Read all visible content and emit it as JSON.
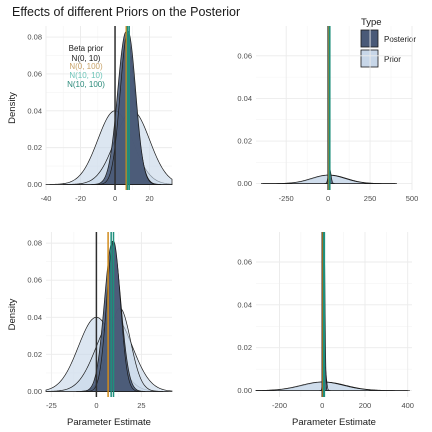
{
  "figure_title": "Effects of different Priors on the Posterior",
  "legend": {
    "title": "Type",
    "items": [
      {
        "label": "Posterior",
        "color": "#4a5a78"
      },
      {
        "label": "Prior",
        "color": "#c7d6e8"
      }
    ]
  },
  "annotations": [
    {
      "text": "Beta prior",
      "color": "#1a1a1a"
    },
    {
      "text": "N(0, 10)",
      "color": "#1a1a1a"
    },
    {
      "text": "N(0, 100)",
      "color": "#c9a46a"
    },
    {
      "text": "N(10, 10)",
      "color": "#6cc4b8"
    },
    {
      "text": "N(10, 100)",
      "color": "#2a8a7a"
    }
  ],
  "colors": {
    "posterior_fill": "#4a5a78",
    "prior_fill": "#c7d6e8",
    "posterior_line_dark": "#2e2e2e",
    "posterior_line_orange": "#d08a1c",
    "posterior_line_teal": "#1e8f7c"
  },
  "chart_data": [
    {
      "type": "area",
      "panel": "top-left",
      "ylabel": "Density",
      "xlabel": "",
      "xlim": [
        -40,
        33
      ],
      "ylim": [
        -0.003,
        0.086
      ],
      "x_ticks": [
        -40,
        -20,
        0,
        20
      ],
      "y_ticks": [
        0.0,
        0.02,
        0.04,
        0.06,
        0.08
      ],
      "x_tick_labels": [
        "-40",
        "-20",
        "0",
        "20"
      ],
      "y_tick_labels": [
        "0.00",
        "0.02",
        "0.04",
        "0.06",
        "0.08"
      ],
      "series": [
        {
          "name": "Prior",
          "kind": "normal",
          "mean": 0,
          "sd": 10,
          "peak": 0.04
        },
        {
          "name": "Prior",
          "kind": "normal",
          "mean": 10,
          "sd": 10,
          "peak": 0.04
        },
        {
          "name": "Posterior",
          "kind": "normal",
          "mean": 6.5,
          "sd": 5,
          "peak": 0.083
        },
        {
          "name": "Posterior",
          "kind": "normal",
          "mean": 7.5,
          "sd": 4.5,
          "peak": 0.083
        }
      ],
      "vlines": [
        {
          "x": 0,
          "color": "#2e2e2e"
        },
        {
          "x": 6.5,
          "color": "#d08a1c"
        },
        {
          "x": 7.2,
          "color": "#1e8f7c"
        },
        {
          "x": 8.2,
          "color": "#1e8f7c"
        }
      ]
    },
    {
      "type": "area",
      "panel": "top-right",
      "ylabel": "",
      "xlabel": "",
      "xlim": [
        -430,
        500
      ],
      "ylim": [
        -0.003,
        0.074
      ],
      "x_ticks": [
        -250,
        0,
        250,
        500
      ],
      "y_ticks": [
        0.0,
        0.02,
        0.04,
        0.06
      ],
      "x_tick_labels": [
        "-250",
        "0",
        "250",
        "500"
      ],
      "y_tick_labels": [
        "0.00",
        "0.02",
        "0.04",
        "0.06"
      ],
      "series": [
        {
          "name": "Prior",
          "kind": "normal",
          "mean": 10,
          "sd": 100,
          "peak": 0.004
        },
        {
          "name": "Prior",
          "kind": "normal",
          "mean": 0,
          "sd": 100,
          "peak": 0.004
        },
        {
          "name": "Posterior",
          "kind": "normal",
          "mean": 9,
          "sd": 8,
          "peak": 0.007
        }
      ],
      "vlines": [
        {
          "x": 0,
          "color": "#2e2e2e"
        },
        {
          "x": 4,
          "color": "#d08a1c"
        },
        {
          "x": 7,
          "color": "#1e8f7c"
        },
        {
          "x": 10,
          "color": "#1e8f7c"
        }
      ]
    },
    {
      "type": "area",
      "panel": "bottom-left",
      "ylabel": "Density",
      "xlabel": "Parameter Estimate",
      "xlim": [
        -28,
        42
      ],
      "ylim": [
        -0.003,
        0.086
      ],
      "x_ticks": [
        -25,
        0,
        25
      ],
      "y_ticks": [
        0.0,
        0.02,
        0.04,
        0.06,
        0.08
      ],
      "x_tick_labels": [
        "-25",
        "0",
        "25"
      ],
      "y_tick_labels": [
        "0.00",
        "0.02",
        "0.04",
        "0.06",
        "0.08"
      ],
      "series": [
        {
          "name": "Prior",
          "kind": "normal",
          "mean": 0,
          "sd": 10,
          "peak": 0.04
        },
        {
          "name": "Prior",
          "kind": "normal",
          "mean": 10,
          "sd": 10,
          "peak": 0.04
        },
        {
          "name": "Prior",
          "kind": "normal",
          "mean": 13,
          "sd": 6,
          "peak": 0.045
        },
        {
          "name": "Posterior",
          "kind": "normal",
          "mean": 9,
          "sd": 4.5,
          "peak": 0.081
        },
        {
          "name": "Posterior",
          "kind": "normal",
          "mean": 9.5,
          "sd": 3.8,
          "peak": 0.081
        }
      ],
      "vlines": [
        {
          "x": 0,
          "color": "#2e2e2e"
        },
        {
          "x": 6.5,
          "color": "#d08a1c"
        },
        {
          "x": 8.2,
          "color": "#1e8f7c"
        },
        {
          "x": 9.5,
          "color": "#1e8f7c"
        }
      ]
    },
    {
      "type": "area",
      "panel": "bottom-right",
      "ylabel": "",
      "xlabel": "Parameter Estimate",
      "xlim": [
        -310,
        420
      ],
      "ylim": [
        -0.003,
        0.074
      ],
      "x_ticks": [
        -200,
        0,
        200,
        400
      ],
      "y_ticks": [
        0.0,
        0.02,
        0.04,
        0.06
      ],
      "x_tick_labels": [
        "-200",
        "0",
        "200",
        "400"
      ],
      "y_tick_labels": [
        "0.00",
        "0.02",
        "0.04",
        "0.06"
      ],
      "series": [
        {
          "name": "Prior",
          "kind": "normal",
          "mean": 10,
          "sd": 100,
          "peak": 0.004
        },
        {
          "name": "Prior",
          "kind": "normal",
          "mean": 0,
          "sd": 100,
          "peak": 0.004
        },
        {
          "name": "Prior",
          "kind": "normal",
          "mean": 13,
          "sd": 6,
          "peak": 0.011
        },
        {
          "name": "Posterior",
          "kind": "normal",
          "mean": 9,
          "sd": 4,
          "peak": 0.07
        }
      ],
      "vlines": [
        {
          "x": 0,
          "color": "#2e2e2e"
        },
        {
          "x": 4,
          "color": "#d08a1c"
        },
        {
          "x": 7,
          "color": "#1e8f7c"
        },
        {
          "x": 10,
          "color": "#1e8f7c"
        }
      ]
    }
  ]
}
